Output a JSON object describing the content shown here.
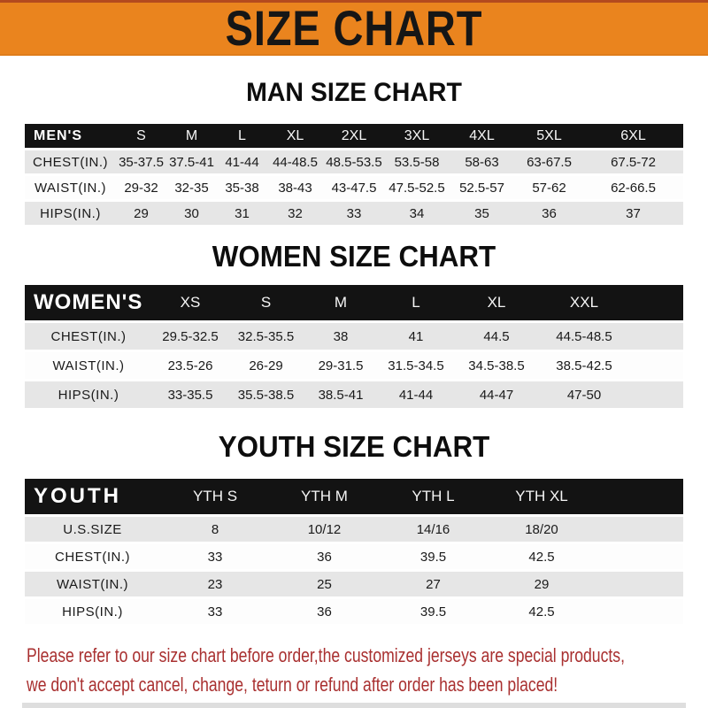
{
  "banner": {
    "title": "SIZE CHART"
  },
  "colors": {
    "banner_orange": "#EA841E",
    "band_black": "#131313",
    "row_gray": "#e6e6e6",
    "row_white": "#fdfdfd",
    "note_red": "#A93030"
  },
  "sections": [
    {
      "heading": "MAN SIZE CHART",
      "table": {
        "header_label": "MEN'S",
        "columns": [
          "S",
          "M",
          "L",
          "XL",
          "2XL",
          "3XL",
          "4XL",
          "5XL",
          "6XL"
        ],
        "rows": [
          {
            "label": "CHEST(IN.)",
            "values": [
              "35-37.5",
              "37.5-41",
              "41-44",
              "44-48.5",
              "48.5-53.5",
              "53.5-58",
              "58-63",
              "63-67.5",
              "67.5-72"
            ]
          },
          {
            "label": "WAIST(IN.)",
            "values": [
              "29-32",
              "32-35",
              "35-38",
              "38-43",
              "43-47.5",
              "47.5-52.5",
              "52.5-57",
              "57-62",
              "62-66.5"
            ]
          },
          {
            "label": "HIPS(IN.)",
            "values": [
              "29",
              "30",
              "31",
              "32",
              "33",
              "34",
              "35",
              "36",
              "37"
            ]
          }
        ]
      }
    },
    {
      "heading": "WOMEN SIZE CHART",
      "table": {
        "header_label": "WOMEN'S",
        "columns": [
          "XS",
          "S",
          "M",
          "L",
          "XL",
          "XXL"
        ],
        "rows": [
          {
            "label": "CHEST(IN.)",
            "values": [
              "29.5-32.5",
              "32.5-35.5",
              "38",
              "41",
              "44.5",
              "44.5-48.5"
            ]
          },
          {
            "label": "WAIST(IN.)",
            "values": [
              "23.5-26",
              "26-29",
              "29-31.5",
              "31.5-34.5",
              "34.5-38.5",
              "38.5-42.5"
            ]
          },
          {
            "label": "HIPS(IN.)",
            "values": [
              "33-35.5",
              "35.5-38.5",
              "38.5-41",
              "41-44",
              "44-47",
              "47-50"
            ]
          }
        ]
      }
    },
    {
      "heading": "YOUTH SIZE CHART",
      "table": {
        "header_label": "YOUTH",
        "columns": [
          "YTH S",
          "YTH M",
          "YTH L",
          "YTH XL"
        ],
        "rows": [
          {
            "label": "U.S.SIZE",
            "values": [
              "8",
              "10/12",
              "14/16",
              "18/20"
            ]
          },
          {
            "label": "CHEST(IN.)",
            "values": [
              "33",
              "36",
              "39.5",
              "42.5"
            ]
          },
          {
            "label": "WAIST(IN.)",
            "values": [
              "23",
              "25",
              "27",
              "29"
            ]
          },
          {
            "label": "HIPS(IN.)",
            "values": [
              "33",
              "36",
              "39.5",
              "42.5"
            ]
          }
        ]
      }
    }
  ],
  "footer": {
    "line1": "Please refer to our size chart before order,the customized jerseys are special products,",
    "line2": "we don't accept cancel, change, teturn or refund after order has been placed!"
  }
}
